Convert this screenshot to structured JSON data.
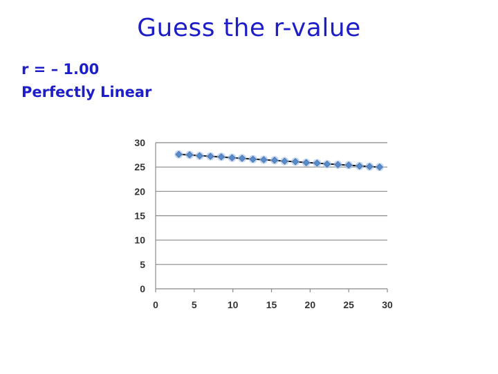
{
  "slide": {
    "title": "Guess the r-value",
    "r_label": "r = – 1.00",
    "description": "Perfectly Linear"
  },
  "colors": {
    "title": "#1e1ec8",
    "marker_fill": "#5b8cc9",
    "marker_halo": "#a9c4e6",
    "trendline": "#111111",
    "grid": "#888888"
  },
  "chart_data": {
    "type": "scatter",
    "xlim": [
      0,
      30
    ],
    "ylim": [
      0,
      30
    ],
    "x_ticks": [
      0,
      5,
      10,
      15,
      20,
      25,
      30
    ],
    "y_ticks": [
      0,
      5,
      10,
      15,
      20,
      25,
      30
    ],
    "grid": "horizontal",
    "trendline": true,
    "series": [
      {
        "x": [
          3,
          4.4,
          5.7,
          7.1,
          8.5,
          9.9,
          11.2,
          12.6,
          14,
          15.4,
          16.7,
          18.1,
          19.5,
          20.9,
          22.2,
          23.6,
          25,
          26.4,
          27.7,
          29
        ],
        "y": [
          27.6,
          27.5,
          27.3,
          27.2,
          27.1,
          26.9,
          26.8,
          26.6,
          26.5,
          26.4,
          26.2,
          26.1,
          25.9,
          25.8,
          25.6,
          25.5,
          25.4,
          25.2,
          25.1,
          25.0
        ]
      }
    ]
  }
}
